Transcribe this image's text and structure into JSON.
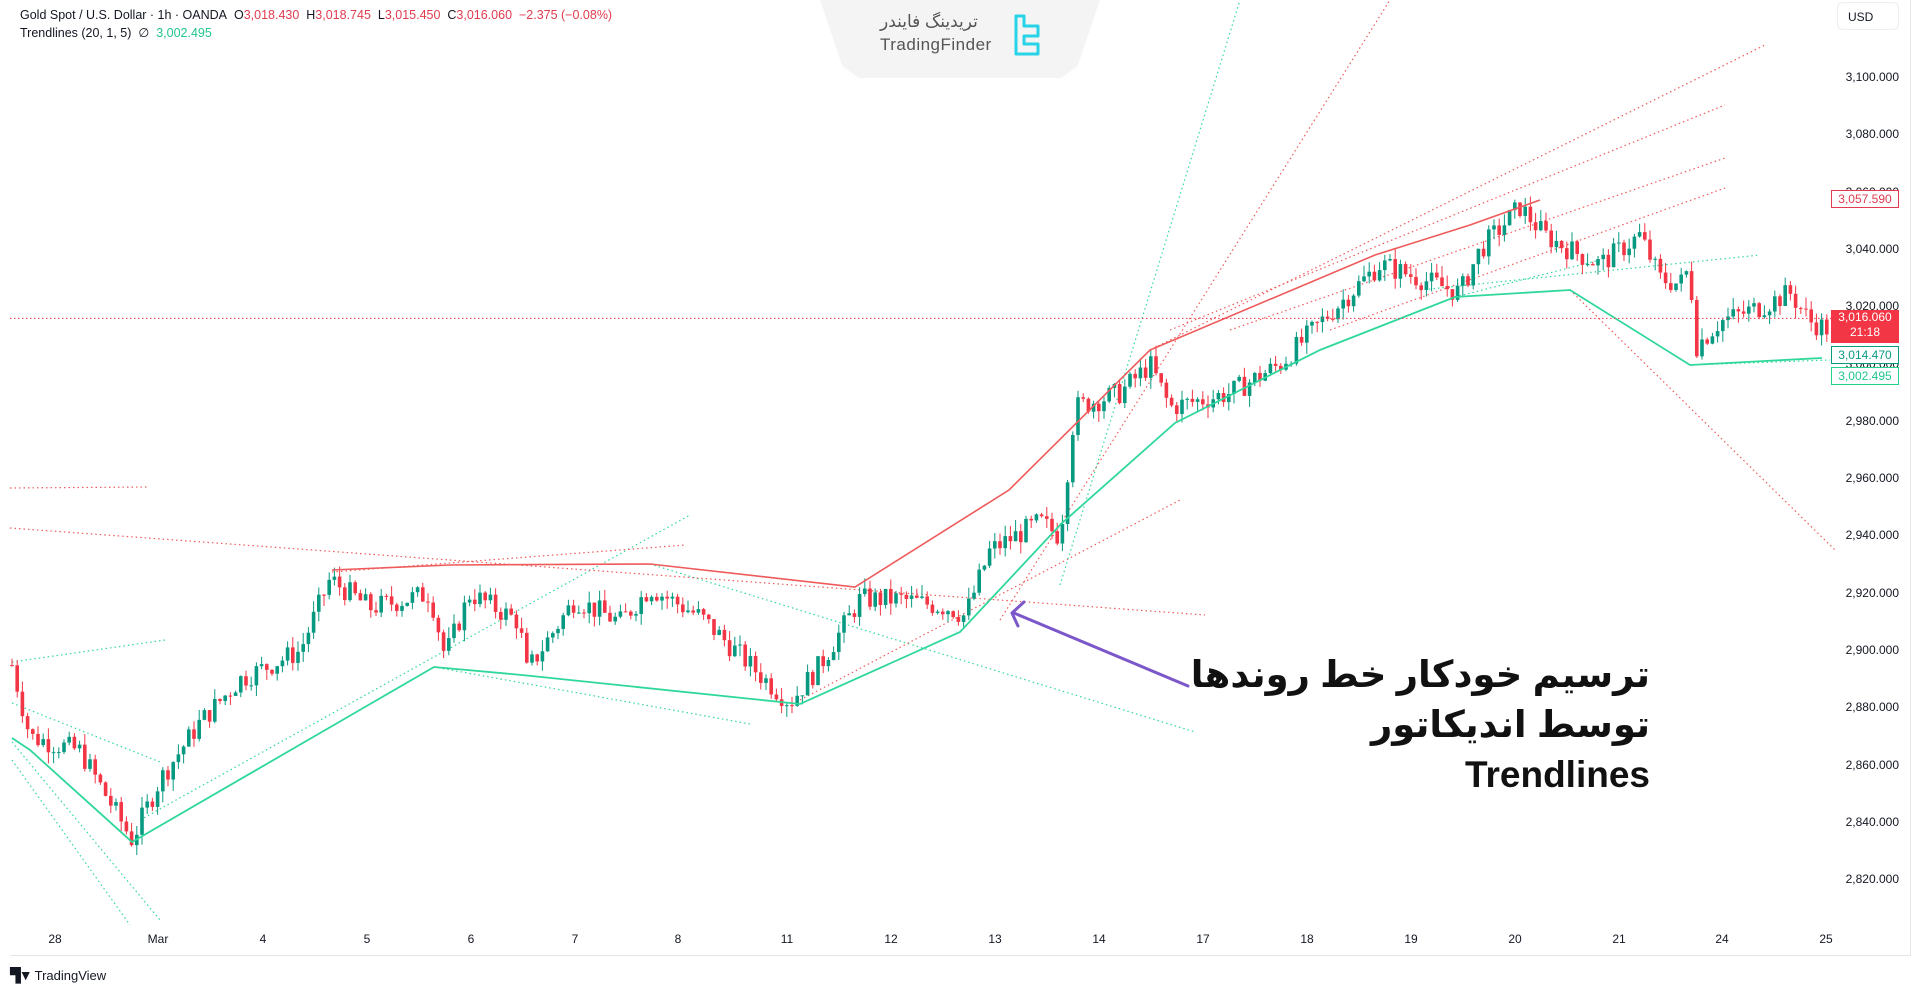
{
  "header": {
    "symbol": "Gold Spot / U.S. Dollar · 1h · OANDA",
    "open_label": "O",
    "open": "3,018.430",
    "high_label": "H",
    "high": "3,018.745",
    "low_label": "L",
    "low": "3,015.450",
    "close_label": "C",
    "close": "3,016.060",
    "change": "−2.375 (−0.08%)",
    "indicator_name": "Trendlines (20, 1, 5)",
    "indicator_symbol": "∅",
    "indicator_value": "3,002.495"
  },
  "watermark": {
    "fa": "تریدینگ فایندر",
    "en": "TradingFinder",
    "icon": "tradingfinder-logo-icon"
  },
  "price_axis": {
    "currency": "USD",
    "ticks": [
      "3,100.000",
      "3,080.000",
      "3,060.000",
      "3,040.000",
      "3,020.000",
      "3,000.000",
      "2,980.000",
      "2,960.000",
      "2,940.000",
      "2,920.000",
      "2,900.000",
      "2,880.000",
      "2,860.000",
      "2,840.000",
      "2,820.000"
    ],
    "tags": {
      "resistance": "3,057.590",
      "last_price": "3,016.060",
      "countdown": "21:18",
      "support_1": "3,014.470",
      "support_2": "3,002.495"
    }
  },
  "time_axis": {
    "labels": [
      "28",
      "Mar",
      "4",
      "5",
      "6",
      "7",
      "8",
      "11",
      "12",
      "13",
      "14",
      "17",
      "18",
      "19",
      "20",
      "21",
      "24",
      "25"
    ]
  },
  "annotation": {
    "line1": "ترسیم خودکار خط روندها",
    "line2": "توسط اندیکاتور Trendlines",
    "arrow_color": "#7b57c9"
  },
  "footer": {
    "brand": "TradingView",
    "icon": "tradingview-logo-icon"
  },
  "colors": {
    "up": "#089981",
    "down": "#f23645",
    "support_line": "#2fd89a",
    "resistance_line": "#ef5a5a",
    "last_price_line": "#f23645"
  },
  "chart_data": {
    "type": "candlestick",
    "title": "Gold Spot / U.S. Dollar · 1h · OANDA",
    "xlabel": "",
    "ylabel": "USD",
    "ylim": [
      2810,
      3115
    ],
    "x_ticks": [
      "28",
      "Mar",
      "4",
      "5",
      "6",
      "7",
      "8",
      "11",
      "12",
      "13",
      "14",
      "17",
      "18",
      "19",
      "20",
      "21",
      "24",
      "25"
    ],
    "last_price": 3016.06,
    "ohlc_last": {
      "open": 3018.43,
      "high": 3018.745,
      "low": 3015.45,
      "close": 3016.06
    },
    "indicator": {
      "name": "Trendlines",
      "params": [
        20,
        1,
        5
      ],
      "value": 3002.495
    },
    "approx_closes_by_day": [
      {
        "day": "27",
        "close": 2885
      },
      {
        "day": "28",
        "close": 2848
      },
      {
        "day": "Mar 3",
        "close": 2890
      },
      {
        "day": "4",
        "close": 2920
      },
      {
        "day": "5",
        "close": 2917
      },
      {
        "day": "6",
        "close": 2910
      },
      {
        "day": "7",
        "close": 2912
      },
      {
        "day": "10",
        "close": 2888
      },
      {
        "day": "11",
        "close": 2916
      },
      {
        "day": "12",
        "close": 2935
      },
      {
        "day": "13",
        "close": 2985
      },
      {
        "day": "14",
        "close": 2987
      },
      {
        "day": "17",
        "close": 3000
      },
      {
        "day": "18",
        "close": 3030
      },
      {
        "day": "19",
        "close": 3047
      },
      {
        "day": "20",
        "close": 3040
      },
      {
        "day": "21",
        "close": 3022
      },
      {
        "day": "24",
        "close": 3012
      },
      {
        "day": "25",
        "close": 3016
      }
    ],
    "pivot_highs": [
      2928,
      2930,
      2930,
      2922,
      2950,
      3040,
      3047,
      3058
    ],
    "pivot_lows": [
      2833,
      2894,
      2890,
      2880,
      2905,
      2978,
      3024,
      3026,
      3004,
      3002.5
    ]
  }
}
